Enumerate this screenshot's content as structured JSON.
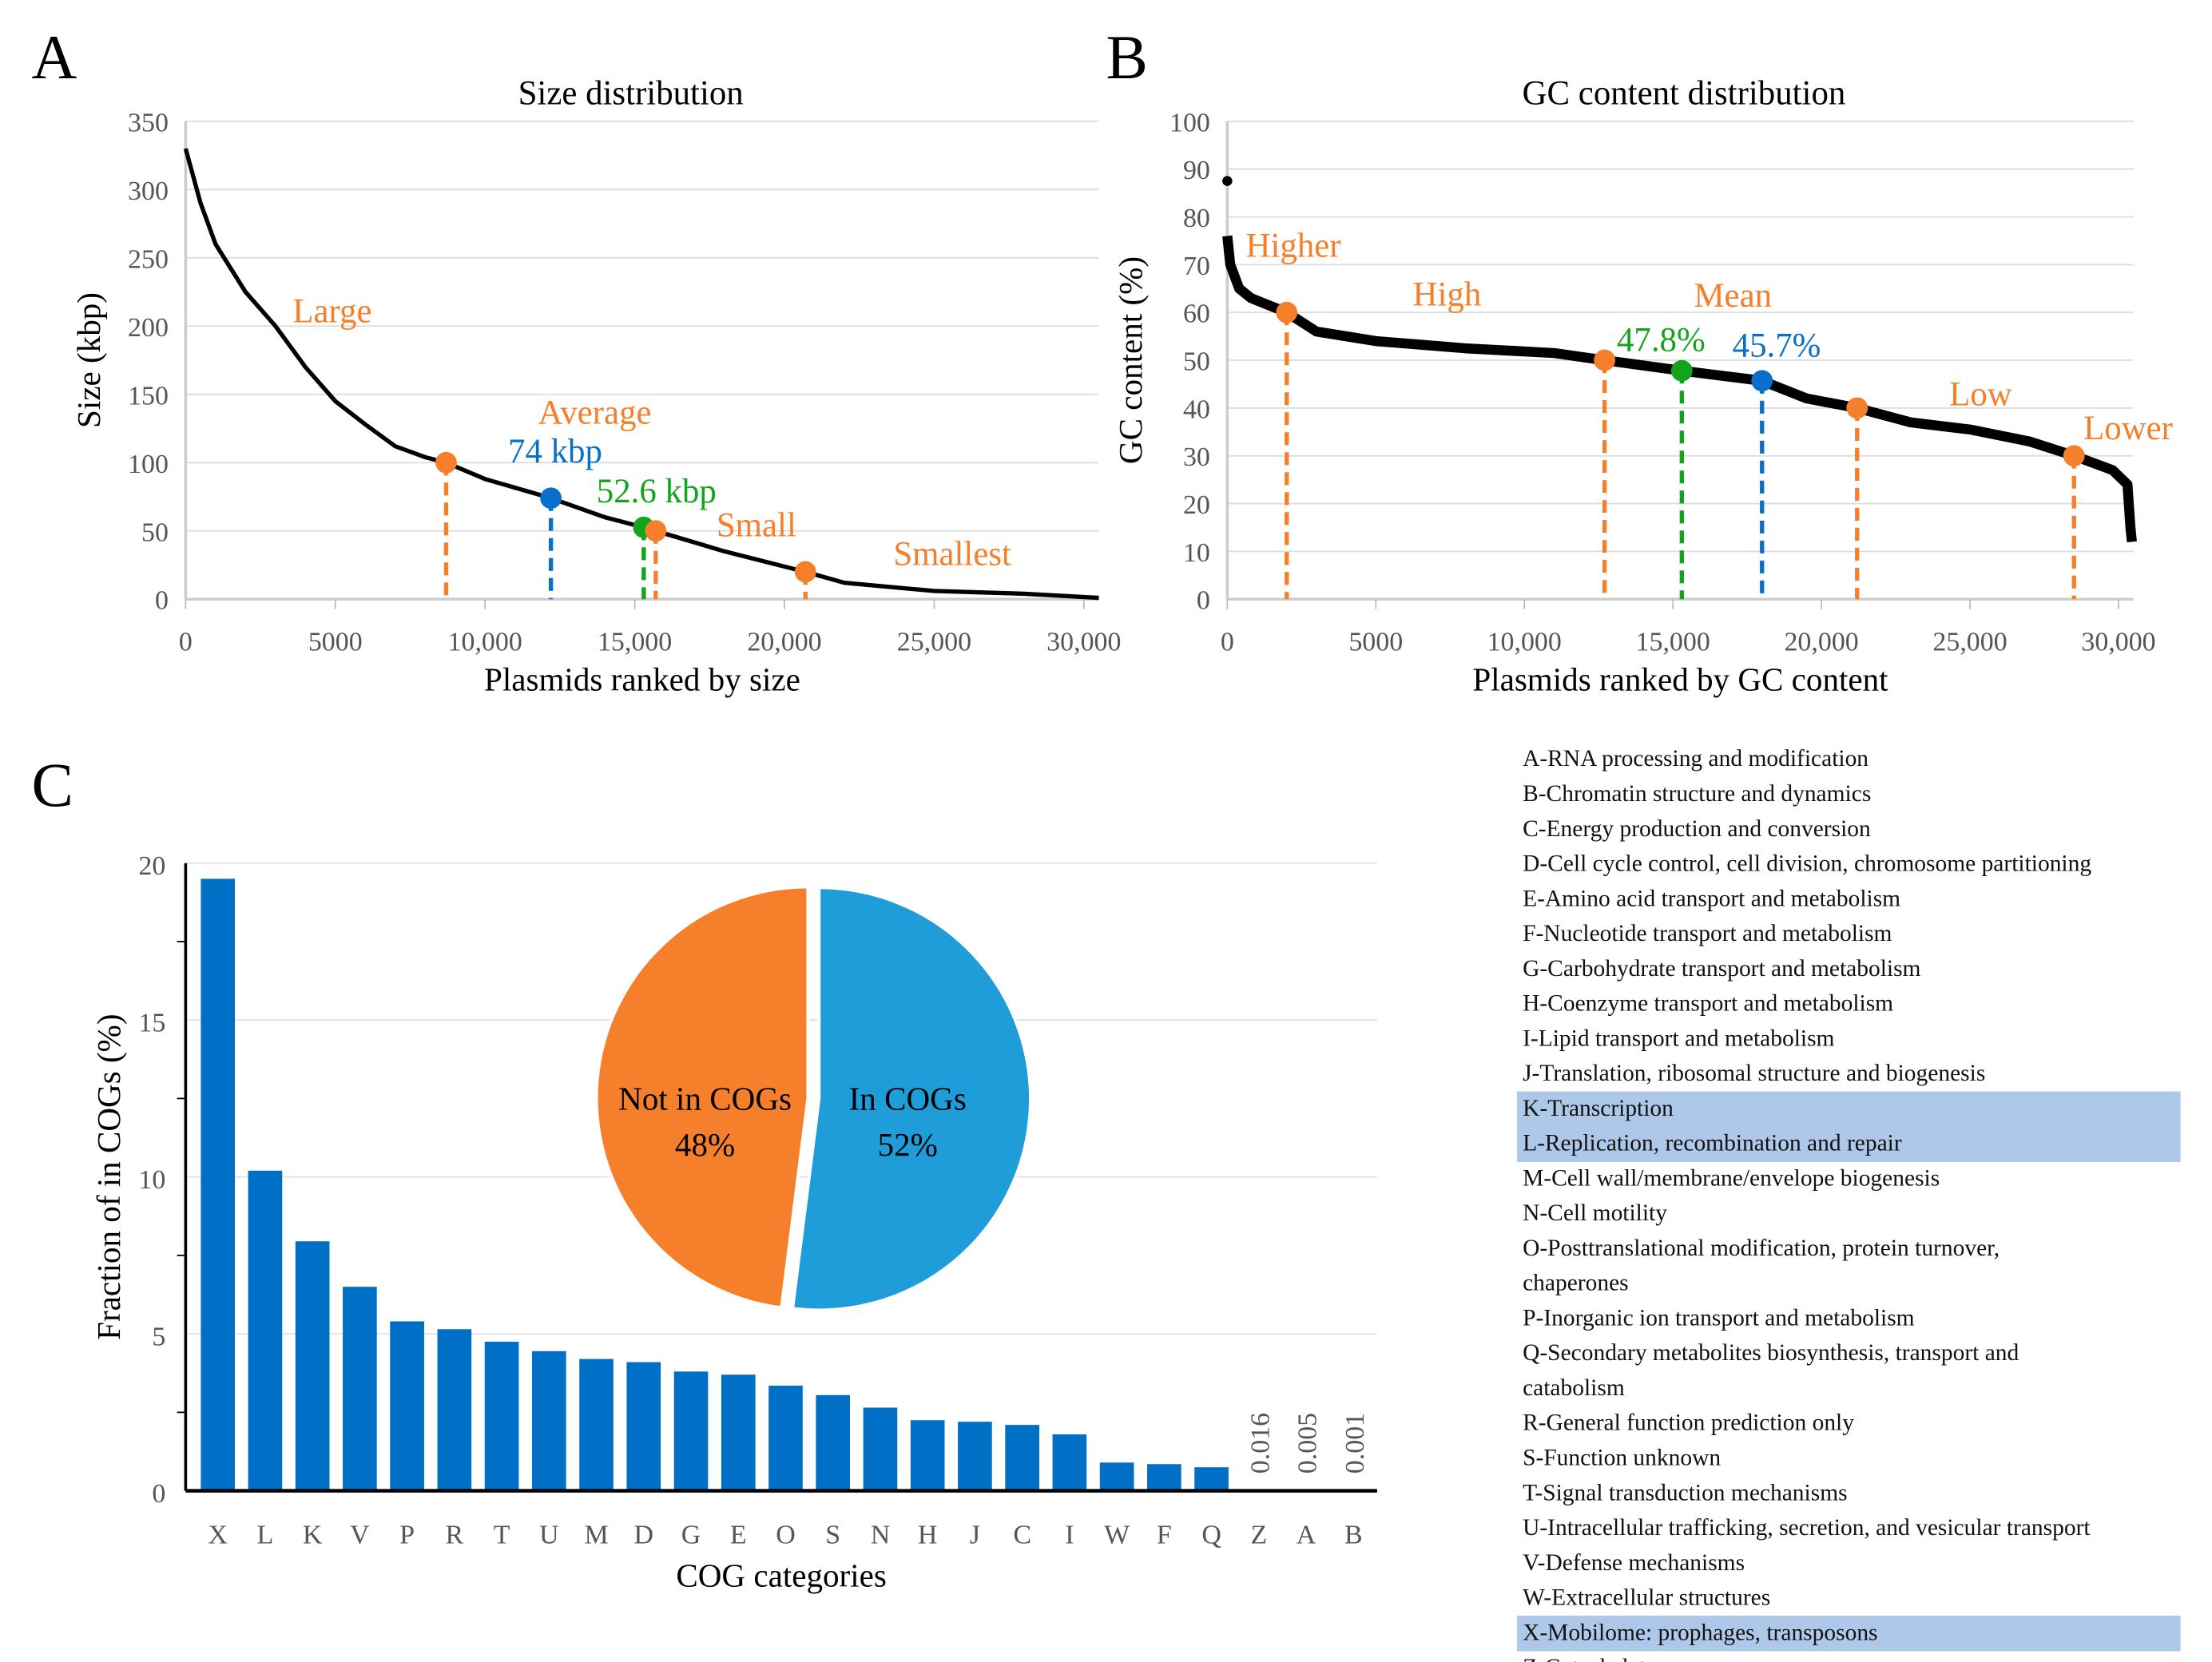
{
  "panels": {
    "a": "A",
    "b": "B",
    "c": "C"
  },
  "chart_data": [
    {
      "type": "line",
      "title": "Size distribution",
      "xlabel": "Plasmids ranked by size",
      "ylabel": "Size (kbp)",
      "xlim": [
        0,
        30500
      ],
      "ylim": [
        0,
        350
      ],
      "xticks": [
        0,
        5000,
        10000,
        15000,
        20000,
        25000,
        30000
      ],
      "xtick_labels": [
        "0",
        "5000",
        "10,000",
        "15,000",
        "20,000",
        "25,000",
        "30,000"
      ],
      "yticks": [
        0,
        50,
        100,
        150,
        200,
        250,
        300,
        350
      ],
      "grid": true,
      "x": [
        0,
        500,
        1000,
        2000,
        3000,
        4000,
        5000,
        6000,
        7000,
        8000,
        8700,
        10000,
        12200,
        14000,
        15300,
        15700,
        18000,
        20700,
        22000,
        25000,
        28000,
        30500
      ],
      "y": [
        330,
        290,
        260,
        225,
        200,
        170,
        145,
        128,
        112,
        104,
        100,
        88,
        74,
        60,
        52.6,
        50,
        35,
        20,
        12,
        6,
        4,
        1
      ],
      "markers": [
        {
          "x": 8700,
          "y": 100,
          "color": "#f57f2a"
        },
        {
          "x": 12200,
          "y": 74,
          "color": "#0a6fc8"
        },
        {
          "x": 15300,
          "y": 52.6,
          "color": "#12a51c"
        },
        {
          "x": 15700,
          "y": 50,
          "color": "#f57f2a"
        },
        {
          "x": 20700,
          "y": 20,
          "color": "#f57f2a"
        }
      ],
      "annotations": [
        {
          "text": "Large",
          "color": "#f57f2a"
        },
        {
          "text": "Average",
          "color": "#f57f2a"
        },
        {
          "text": "74 kbp",
          "color": "#0a6fc8"
        },
        {
          "text": "52.6 kbp",
          "color": "#12a51c"
        },
        {
          "text": "Small",
          "color": "#f57f2a"
        },
        {
          "text": "Smallest",
          "color": "#f57f2a"
        }
      ]
    },
    {
      "type": "line",
      "title": "GC content distribution",
      "xlabel": "Plasmids ranked by GC content",
      "ylabel": "GC content (%)",
      "xlim": [
        0,
        30500
      ],
      "ylim": [
        0,
        100
      ],
      "xticks": [
        0,
        5000,
        10000,
        15000,
        20000,
        25000,
        30000
      ],
      "xtick_labels": [
        "0",
        "5000",
        "10,000",
        "15,000",
        "20,000",
        "25,000",
        "30,000"
      ],
      "yticks": [
        0,
        10,
        20,
        30,
        40,
        50,
        60,
        70,
        80,
        90,
        100
      ],
      "grid": true,
      "outlier": {
        "x": 0,
        "y": 87.5
      },
      "x": [
        0,
        100,
        400,
        800,
        2000,
        3000,
        5000,
        8000,
        11000,
        12700,
        15300,
        18000,
        19500,
        21200,
        23000,
        25000,
        27000,
        28500,
        29800,
        30300,
        30400,
        30450
      ],
      "y": [
        76,
        70,
        65,
        63,
        60,
        56,
        54,
        52.5,
        51.5,
        50,
        47.8,
        45.7,
        42,
        40,
        37,
        35.5,
        33,
        30,
        27,
        24,
        15,
        12
      ],
      "markers": [
        {
          "x": 2000,
          "y": 60,
          "color": "#f57f2a"
        },
        {
          "x": 12700,
          "y": 50,
          "color": "#f57f2a"
        },
        {
          "x": 15300,
          "y": 47.8,
          "color": "#12a51c"
        },
        {
          "x": 18000,
          "y": 45.7,
          "color": "#0a6fc8"
        },
        {
          "x": 21200,
          "y": 40,
          "color": "#f57f2a"
        },
        {
          "x": 28500,
          "y": 30,
          "color": "#f57f2a"
        }
      ],
      "annotations": [
        {
          "text": "Higher",
          "color": "#f57f2a"
        },
        {
          "text": "High",
          "color": "#f57f2a"
        },
        {
          "text": "Mean",
          "color": "#f57f2a"
        },
        {
          "text": "47.8%",
          "color": "#12a51c"
        },
        {
          "text": "45.7%",
          "color": "#0a6fc8"
        },
        {
          "text": "Low",
          "color": "#f57f2a"
        },
        {
          "text": "Lower",
          "color": "#f57f2a"
        }
      ]
    },
    {
      "type": "bar",
      "xlabel": "COG categories",
      "ylabel": "Fraction of in COGs (%)",
      "ylim": [
        0,
        20
      ],
      "yticks": [
        0,
        5,
        10,
        15,
        20
      ],
      "grid": true,
      "color": "#0070c6",
      "categories": [
        "X",
        "L",
        "K",
        "V",
        "P",
        "R",
        "T",
        "U",
        "M",
        "D",
        "G",
        "E",
        "O",
        "S",
        "N",
        "H",
        "J",
        "C",
        "I",
        "W",
        "F",
        "Q",
        "Z",
        "A",
        "B"
      ],
      "values": [
        19.5,
        10.2,
        7.95,
        6.5,
        5.4,
        5.15,
        4.75,
        4.45,
        4.2,
        4.1,
        3.8,
        3.7,
        3.35,
        3.05,
        2.65,
        2.25,
        2.2,
        2.1,
        1.8,
        0.9,
        0.85,
        0.75,
        0.016,
        0.005,
        0.001
      ],
      "value_labels": {
        "Z": "0.016",
        "A": "0.005",
        "B": "0.001"
      }
    },
    {
      "type": "pie",
      "slices": [
        {
          "label": "In COGs",
          "pct_label": "52%",
          "value": 52,
          "color": "#1e9dd8"
        },
        {
          "label": "Not in COGs",
          "pct_label": "48%",
          "value": 48,
          "color": "#f57f2a"
        }
      ]
    }
  ],
  "legend": {
    "highlight_color": "#aec8ea",
    "highlighted": [
      "K",
      "L",
      "X"
    ],
    "items": [
      {
        "key": "A",
        "text": "A-RNA processing and modification"
      },
      {
        "key": "B",
        "text": "B-Chromatin structure and dynamics"
      },
      {
        "key": "C",
        "text": "C-Energy production and conversion"
      },
      {
        "key": "D",
        "text": "D-Cell cycle control, cell division, chromosome partitioning"
      },
      {
        "key": "E",
        "text": "E-Amino acid transport and metabolism"
      },
      {
        "key": "F",
        "text": "F-Nucleotide transport and metabolism"
      },
      {
        "key": "G",
        "text": "G-Carbohydrate transport and metabolism"
      },
      {
        "key": "H",
        "text": "H-Coenzyme transport and metabolism"
      },
      {
        "key": "I",
        "text": "I-Lipid transport and metabolism"
      },
      {
        "key": "J",
        "text": "J-Translation, ribosomal structure and biogenesis"
      },
      {
        "key": "K",
        "text": "K-Transcription"
      },
      {
        "key": "L",
        "text": "L-Replication, recombination and repair"
      },
      {
        "key": "M",
        "text": "M-Cell wall/membrane/envelope biogenesis"
      },
      {
        "key": "N",
        "text": "N-Cell motility"
      },
      {
        "key": "O",
        "text": "O-Posttranslational modification, protein turnover,",
        "text2": "chaperones"
      },
      {
        "key": "P",
        "text": "P-Inorganic ion transport and metabolism"
      },
      {
        "key": "Q",
        "text": "Q-Secondary metabolites biosynthesis, transport and",
        "text2": "catabolism"
      },
      {
        "key": "R",
        "text": "R-General function prediction only"
      },
      {
        "key": "S",
        "text": "S-Function unknown"
      },
      {
        "key": "T",
        "text": "T-Signal transduction mechanisms"
      },
      {
        "key": "U",
        "text": "U-Intracellular trafficking, secretion, and vesicular transport"
      },
      {
        "key": "V",
        "text": "V-Defense mechanisms"
      },
      {
        "key": "W",
        "text": "W-Extracellular structures"
      },
      {
        "key": "X",
        "text": "X-Mobilome: prophages, transposons"
      },
      {
        "key": "Z",
        "text": "Z-Cytoskeleton"
      }
    ]
  }
}
